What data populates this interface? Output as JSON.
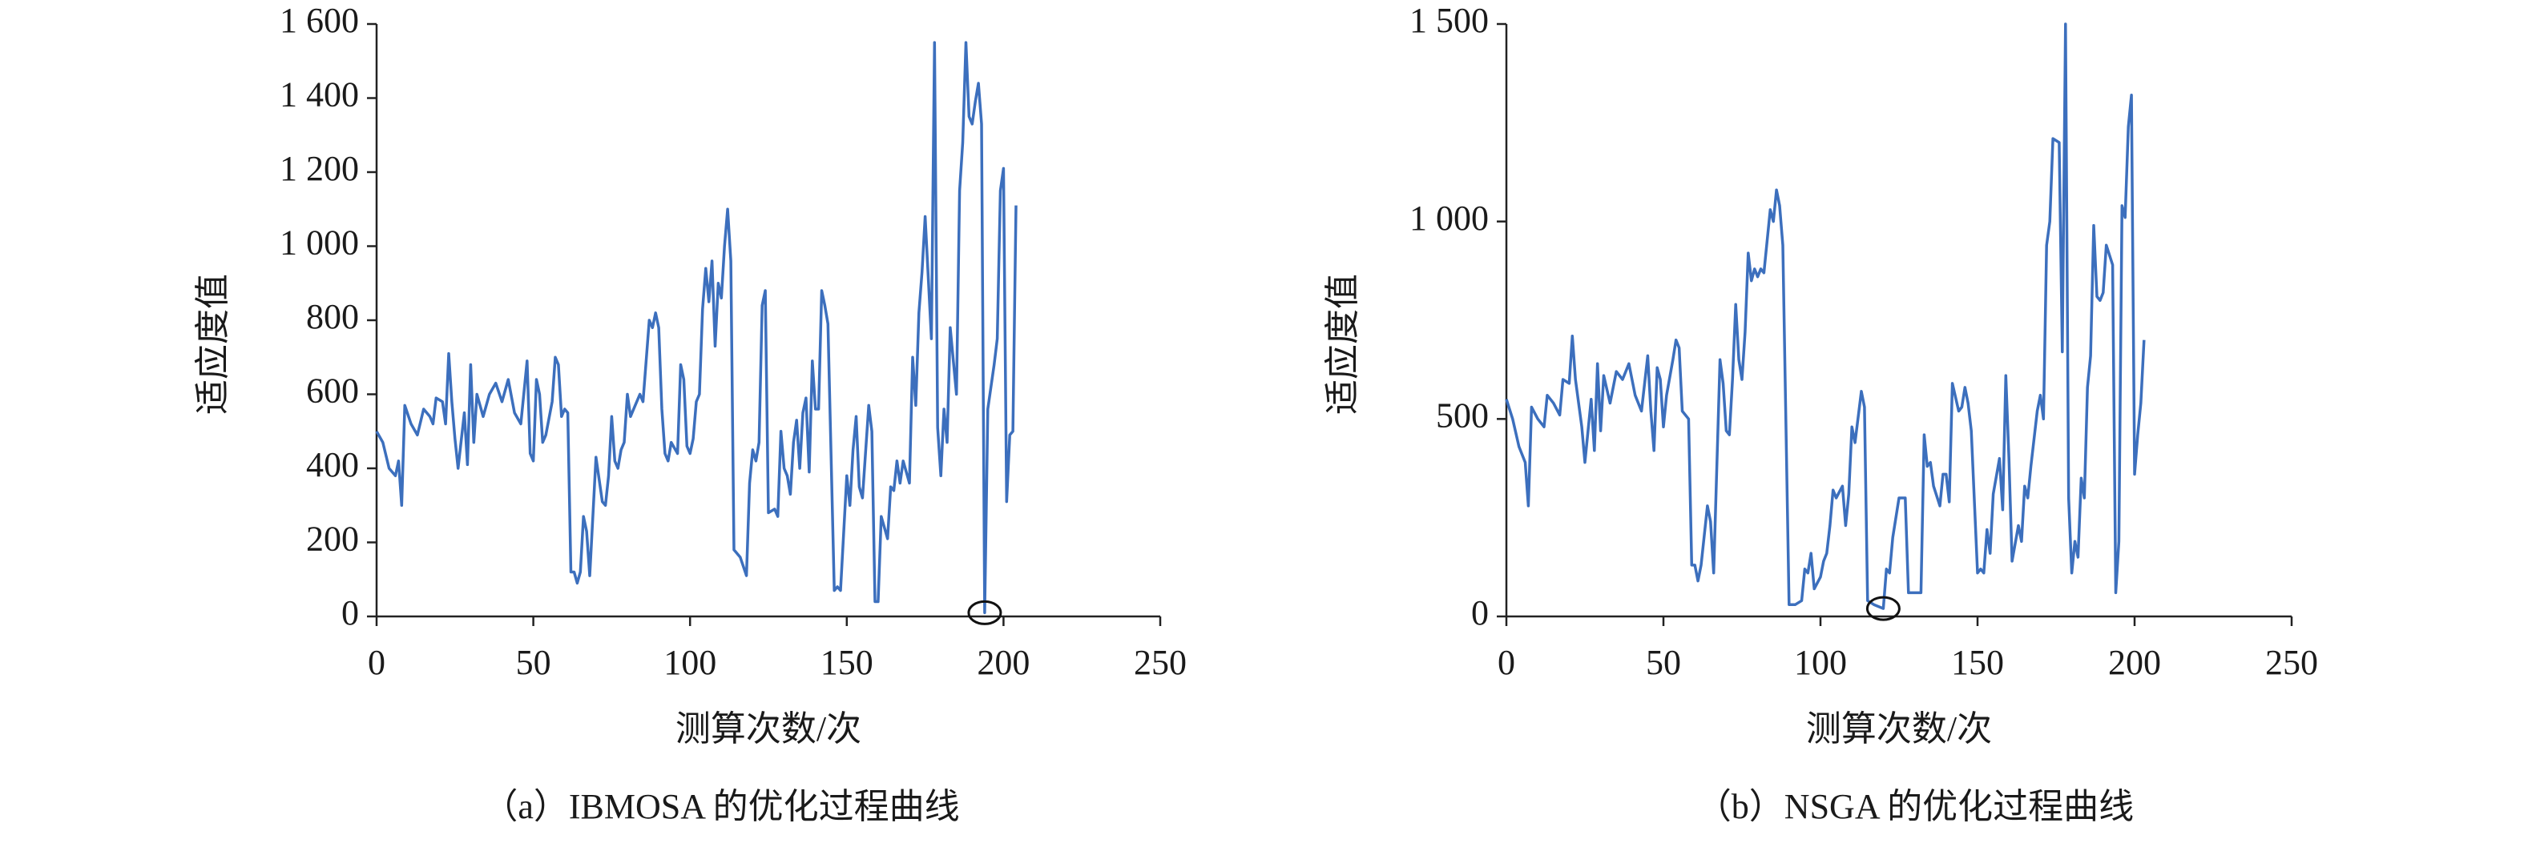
{
  "chart_data": [
    {
      "type": "line",
      "title": "（a）IBMOSA 的优化过程曲线",
      "xlabel": "测算次数/次",
      "ylabel": "适应度值",
      "x": [
        0,
        2,
        4,
        6,
        7,
        8,
        9,
        11,
        13,
        15,
        17,
        18,
        19,
        21,
        22,
        23,
        24,
        25,
        26,
        28,
        29,
        30,
        31,
        32,
        34,
        36,
        38,
        40,
        42,
        44,
        46,
        48,
        49,
        50,
        51,
        52,
        53,
        54,
        56,
        57,
        58,
        59,
        60,
        61,
        62,
        63,
        64,
        65,
        66,
        67,
        68,
        70,
        72,
        73,
        74,
        75,
        76,
        77,
        78,
        79,
        80,
        81,
        82,
        84,
        85,
        87,
        88,
        89,
        90,
        91,
        92,
        93,
        94,
        96,
        97,
        98,
        99,
        100,
        101,
        102,
        103,
        104,
        105,
        106,
        107,
        108,
        109,
        110,
        111,
        112,
        113,
        114,
        116,
        118,
        119,
        120,
        121,
        122,
        123,
        124,
        125,
        127,
        128,
        129,
        130,
        131,
        132,
        133,
        134,
        135,
        136,
        137,
        138,
        139,
        140,
        141,
        142,
        143,
        144,
        146,
        147,
        148,
        150,
        151,
        152,
        153,
        154,
        155,
        157,
        158,
        159,
        160,
        161,
        163,
        164,
        165,
        166,
        167,
        168,
        170,
        171,
        172,
        173,
        174,
        175,
        177,
        178,
        179,
        180,
        181,
        182,
        183,
        185,
        186,
        187,
        188,
        189,
        190,
        191,
        192,
        193,
        194,
        195,
        197,
        198,
        199,
        200,
        201,
        202,
        203,
        204
      ],
      "series": [
        {
          "color": "#3c6fbd",
          "values": [
            500,
            470,
            400,
            380,
            420,
            300,
            570,
            520,
            490,
            560,
            540,
            520,
            590,
            580,
            520,
            710,
            580,
            480,
            400,
            550,
            410,
            680,
            470,
            600,
            540,
            600,
            630,
            580,
            640,
            550,
            520,
            690,
            440,
            420,
            640,
            600,
            470,
            490,
            580,
            700,
            680,
            540,
            560,
            550,
            120,
            120,
            90,
            120,
            270,
            230,
            110,
            430,
            310,
            300,
            380,
            540,
            420,
            400,
            450,
            470,
            600,
            540,
            560,
            600,
            580,
            800,
            780,
            820,
            780,
            560,
            440,
            420,
            470,
            440,
            680,
            640,
            460,
            440,
            480,
            580,
            600,
            830,
            940,
            850,
            960,
            730,
            900,
            860,
            1000,
            1100,
            960,
            180,
            160,
            110,
            360,
            450,
            420,
            470,
            840,
            880,
            280,
            290,
            270,
            500,
            400,
            380,
            330,
            470,
            530,
            400,
            550,
            590,
            390,
            690,
            560,
            560,
            880,
            840,
            790,
            70,
            80,
            70,
            380,
            300,
            450,
            540,
            350,
            320,
            570,
            500,
            40,
            40,
            270,
            210,
            350,
            340,
            420,
            360,
            420,
            360,
            700,
            570,
            820,
            930,
            1080,
            750,
            1550,
            510,
            380,
            560,
            470,
            780,
            600,
            1150,
            1280,
            1550,
            1350,
            1330,
            1390,
            1440,
            1330,
            10,
            560,
            680,
            750,
            1150,
            1210,
            310,
            490,
            500,
            1110
          ]
        }
      ],
      "xlim": [
        0,
        250
      ],
      "xticks": [
        0,
        50,
        100,
        150,
        200,
        250
      ],
      "ylim": [
        0,
        1600
      ],
      "yticks": [
        0,
        200,
        400,
        600,
        800,
        {
          "value": 1000,
          "label": "1 000"
        },
        {
          "value": 1200,
          "label": "1 200"
        },
        {
          "value": 1400,
          "label": "1 400"
        },
        {
          "value": 1600,
          "label": "1 600"
        }
      ]
    },
    {
      "type": "line",
      "title": "（b）NSGA 的优化过程曲线",
      "xlabel": "测算次数/次",
      "ylabel": "适应度值",
      "x": [
        0,
        2,
        4,
        6,
        7,
        8,
        10,
        12,
        13,
        15,
        17,
        18,
        20,
        21,
        22,
        24,
        25,
        27,
        28,
        29,
        30,
        31,
        33,
        35,
        37,
        39,
        41,
        43,
        45,
        46,
        47,
        48,
        49,
        50,
        51,
        53,
        54,
        55,
        56,
        58,
        59,
        60,
        61,
        62,
        64,
        65,
        66,
        68,
        69,
        70,
        71,
        72,
        73,
        74,
        75,
        76,
        77,
        78,
        79,
        80,
        81,
        82,
        84,
        85,
        86,
        87,
        88,
        90,
        91,
        92,
        94,
        95,
        96,
        97,
        98,
        100,
        101,
        102,
        103,
        104,
        105,
        107,
        108,
        109,
        110,
        111,
        113,
        114,
        115,
        117,
        120,
        121,
        122,
        123,
        125,
        127,
        128,
        129,
        132,
        133,
        134,
        135,
        136,
        138,
        139,
        140,
        141,
        142,
        144,
        145,
        146,
        147,
        148,
        150,
        151,
        152,
        153,
        154,
        155,
        157,
        158,
        159,
        160,
        161,
        163,
        164,
        165,
        166,
        167,
        169,
        170,
        171,
        172,
        173,
        174,
        176,
        177,
        178,
        179,
        180,
        181,
        182,
        183,
        184,
        185,
        186,
        187,
        188,
        189,
        190,
        191,
        193,
        194,
        195,
        196,
        197,
        198,
        199,
        200,
        201,
        202,
        203
      ],
      "series": [
        {
          "color": "#3c6fbd",
          "values": [
            550,
            500,
            430,
            390,
            280,
            530,
            500,
            480,
            560,
            540,
            510,
            600,
            590,
            710,
            600,
            480,
            390,
            550,
            420,
            640,
            470,
            610,
            540,
            620,
            600,
            640,
            560,
            520,
            660,
            520,
            420,
            630,
            600,
            480,
            560,
            650,
            700,
            680,
            520,
            500,
            130,
            130,
            90,
            130,
            280,
            240,
            110,
            650,
            590,
            470,
            460,
            600,
            790,
            650,
            600,
            720,
            920,
            850,
            880,
            860,
            880,
            870,
            1030,
            1000,
            1080,
            1040,
            940,
            30,
            30,
            30,
            40,
            120,
            110,
            160,
            70,
            100,
            140,
            160,
            230,
            320,
            300,
            330,
            230,
            310,
            480,
            440,
            570,
            530,
            40,
            30,
            20,
            120,
            110,
            200,
            300,
            300,
            60,
            60,
            60,
            460,
            380,
            390,
            330,
            280,
            360,
            360,
            290,
            590,
            520,
            530,
            580,
            540,
            470,
            110,
            120,
            110,
            220,
            160,
            310,
            400,
            270,
            610,
            400,
            140,
            230,
            190,
            330,
            300,
            380,
            520,
            560,
            500,
            940,
            1000,
            1210,
            1200,
            670,
            1500,
            300,
            110,
            190,
            150,
            350,
            300,
            580,
            660,
            990,
            810,
            800,
            820,
            940,
            890,
            60,
            190,
            1040,
            1010,
            1240,
            1320,
            360,
            460,
            540,
            700
          ]
        }
      ],
      "xlim": [
        0,
        250
      ],
      "xticks": [
        0,
        50,
        100,
        150,
        200,
        250
      ],
      "ylim": [
        0,
        1500
      ],
      "yticks": [
        0,
        500,
        {
          "value": 1000,
          "label": "1 000"
        },
        {
          "value": 1500,
          "label": "1 500"
        }
      ]
    }
  ]
}
